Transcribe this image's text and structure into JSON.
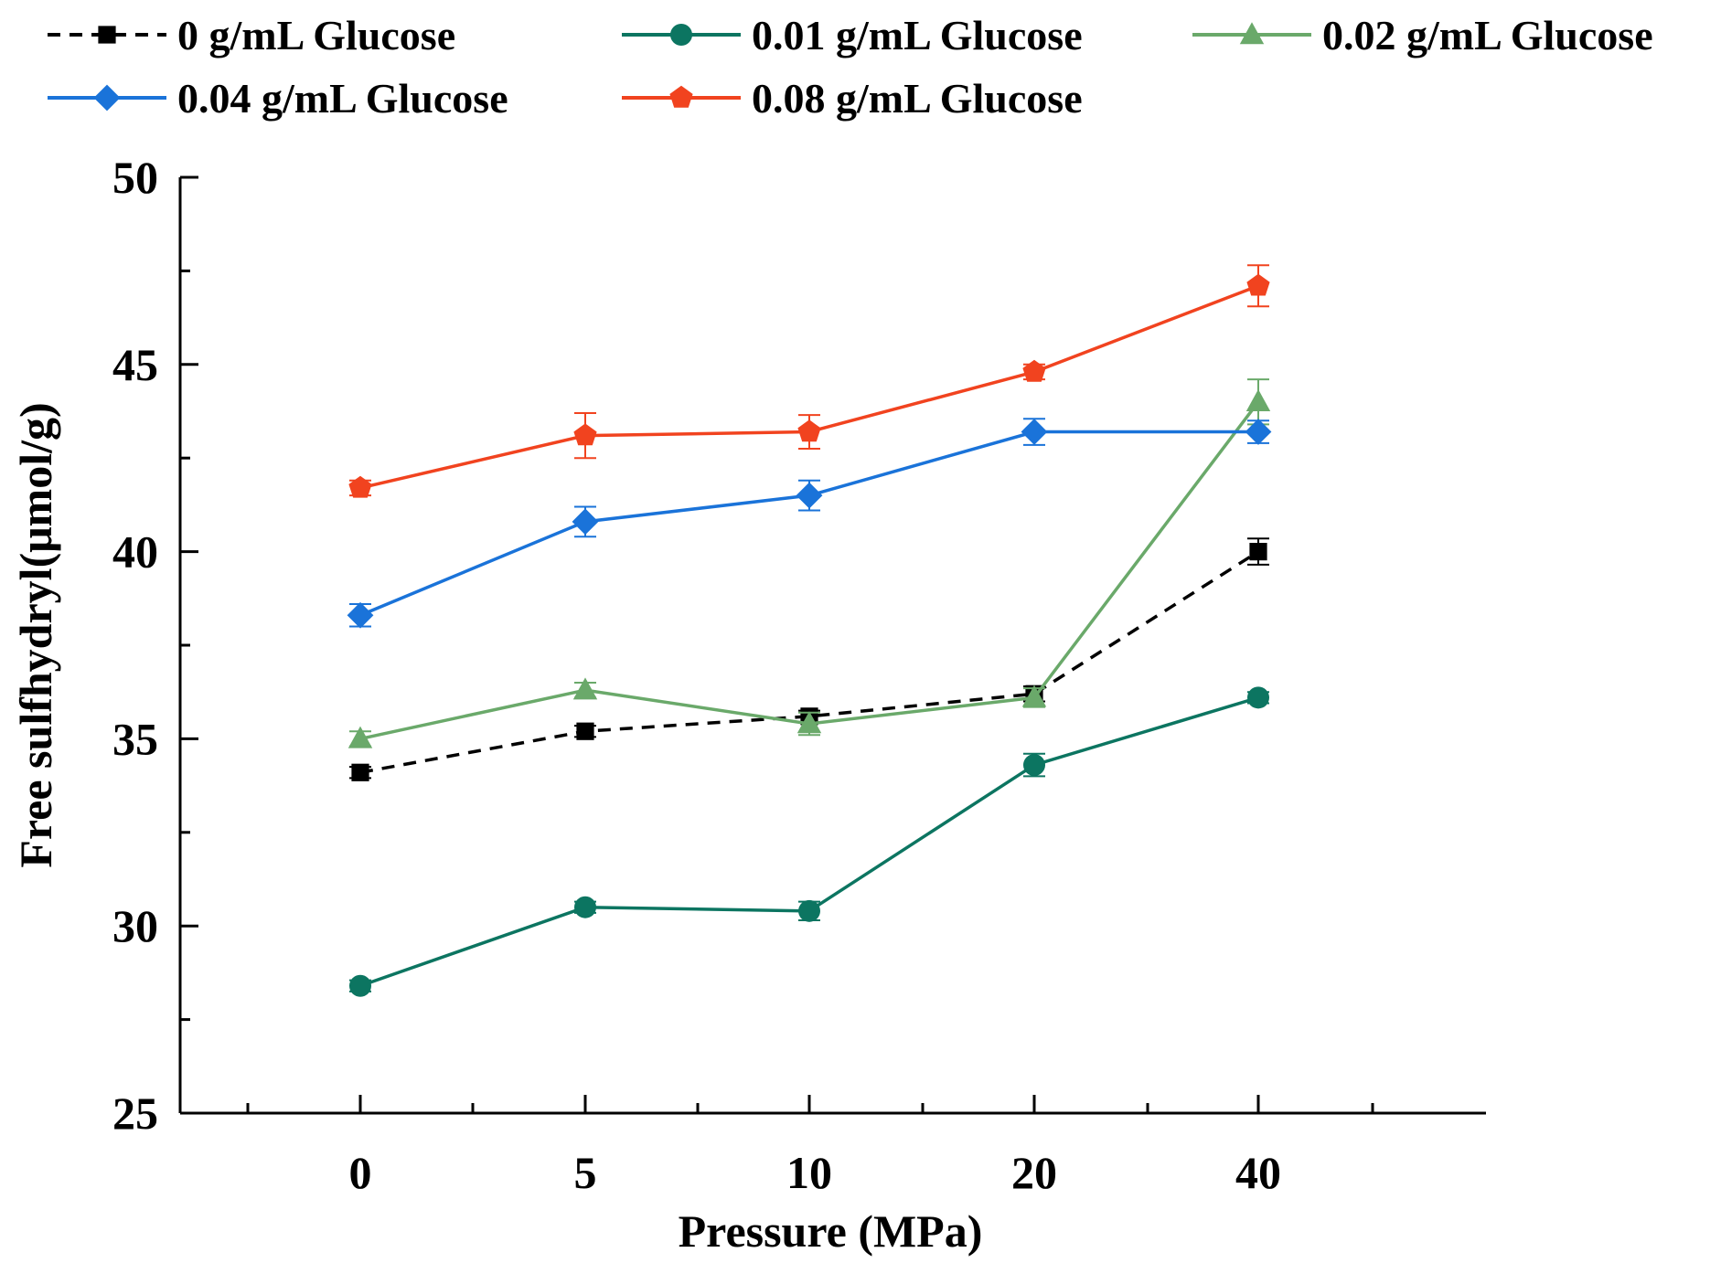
{
  "chart_data": {
    "type": "line",
    "title": "",
    "xlabel": "Pressure (MPa)",
    "ylabel": "Free sulfhydryl(μmol/g)",
    "categories": [
      "0",
      "5",
      "10",
      "20",
      "40"
    ],
    "ylim": [
      25,
      50
    ],
    "yticks": [
      25,
      30,
      35,
      40,
      45,
      50
    ],
    "grid": false,
    "legend_position": "top",
    "series": [
      {
        "name": "0 g/mL Glucose",
        "color": "#000000",
        "marker": "square",
        "dashed": true,
        "values": [
          34.1,
          35.2,
          35.6,
          36.2,
          40.0
        ],
        "errors": [
          0.15,
          0.15,
          0.15,
          0.2,
          0.35
        ]
      },
      {
        "name": "0.01 g/mL Glucose",
        "color": "#0c7561",
        "marker": "circle",
        "dashed": false,
        "values": [
          28.4,
          30.5,
          30.4,
          34.3,
          36.1
        ],
        "errors": [
          0.15,
          0.15,
          0.25,
          0.3,
          0.15
        ]
      },
      {
        "name": "0.02 g/mL Glucose",
        "color": "#6aa96a",
        "marker": "triangle",
        "dashed": false,
        "values": [
          35.0,
          36.3,
          35.4,
          36.1,
          44.0
        ],
        "errors": [
          0.2,
          0.2,
          0.3,
          0.25,
          0.6
        ]
      },
      {
        "name": "0.04 g/mL Glucose",
        "color": "#1a73d9",
        "marker": "diamond",
        "dashed": false,
        "values": [
          38.3,
          40.8,
          41.5,
          43.2,
          43.2
        ],
        "errors": [
          0.3,
          0.4,
          0.4,
          0.35,
          0.3
        ]
      },
      {
        "name": "0.08 g/mL Glucose",
        "color": "#f1431f",
        "marker": "pentagon",
        "dashed": false,
        "values": [
          41.7,
          43.1,
          43.2,
          44.8,
          47.1
        ],
        "errors": [
          0.2,
          0.6,
          0.45,
          0.2,
          0.55
        ]
      }
    ]
  }
}
